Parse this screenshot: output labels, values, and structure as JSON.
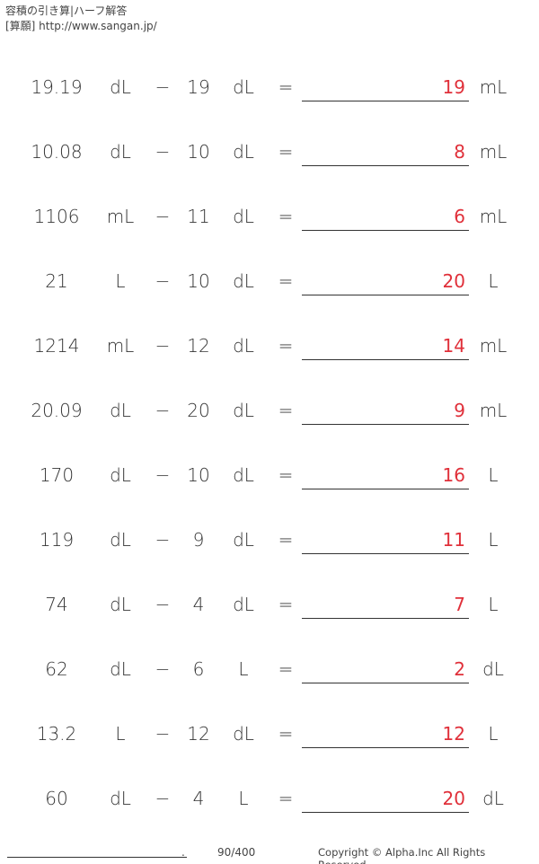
{
  "header": {
    "title": "容積の引き算|ハーフ解答",
    "subtitle": "[算願] http://www.sangan.jp/"
  },
  "operator": "−",
  "equals": "=",
  "problems": [
    {
      "a": "19.19",
      "ua": "dL",
      "b": "19",
      "ub": "dL",
      "ans": "19",
      "uans": "mL"
    },
    {
      "a": "10.08",
      "ua": "dL",
      "b": "10",
      "ub": "dL",
      "ans": "8",
      "uans": "mL"
    },
    {
      "a": "1106",
      "ua": "mL",
      "b": "11",
      "ub": "dL",
      "ans": "6",
      "uans": "mL"
    },
    {
      "a": "21",
      "ua": "L",
      "b": "10",
      "ub": "dL",
      "ans": "20",
      "uans": "L"
    },
    {
      "a": "1214",
      "ua": "mL",
      "b": "12",
      "ub": "dL",
      "ans": "14",
      "uans": "mL"
    },
    {
      "a": "20.09",
      "ua": "dL",
      "b": "20",
      "ub": "dL",
      "ans": "9",
      "uans": "mL"
    },
    {
      "a": "170",
      "ua": "dL",
      "b": "10",
      "ub": "dL",
      "ans": "16",
      "uans": "L"
    },
    {
      "a": "119",
      "ua": "dL",
      "b": "9",
      "ub": "dL",
      "ans": "11",
      "uans": "L"
    },
    {
      "a": "74",
      "ua": "dL",
      "b": "4",
      "ub": "dL",
      "ans": "7",
      "uans": "L"
    },
    {
      "a": "62",
      "ua": "dL",
      "b": "6",
      "ub": "L",
      "ans": "2",
      "uans": "dL"
    },
    {
      "a": "13.2",
      "ua": "L",
      "b": "12",
      "ub": "dL",
      "ans": "12",
      "uans": "L"
    },
    {
      "a": "60",
      "ua": "dL",
      "b": "4",
      "ub": "L",
      "ans": "20",
      "uans": "dL"
    }
  ],
  "footer": {
    "name_dot": ".",
    "page": "90/400",
    "copyright": "Copyright © Alpha.Inc All Rights Reserved."
  },
  "colors": {
    "answer": "#e0303a",
    "text": "#333333"
  }
}
